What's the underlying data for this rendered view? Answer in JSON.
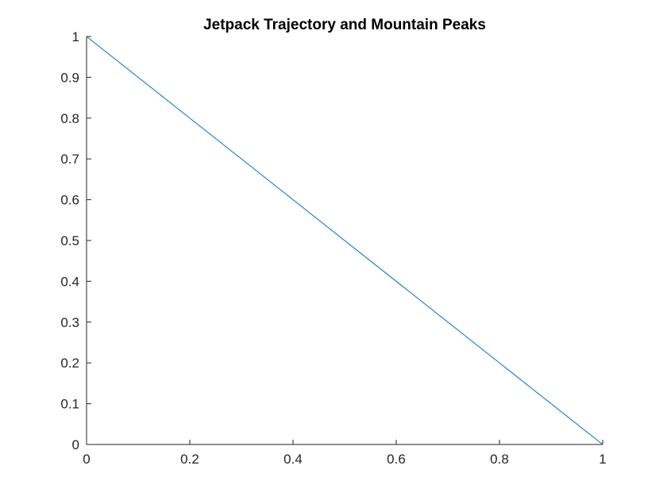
{
  "chart_data": {
    "type": "line",
    "title": "Jetpack Trajectory and Mountain Peaks",
    "xlabel": "",
    "ylabel": "",
    "xlim": [
      0,
      1
    ],
    "ylim": [
      0,
      1
    ],
    "x_ticks": [
      0,
      0.2,
      0.4,
      0.6,
      0.8,
      1
    ],
    "x_tick_labels": [
      "0",
      "0.2",
      "0.4",
      "0.6",
      "0.8",
      "1"
    ],
    "y_ticks": [
      0,
      0.1,
      0.2,
      0.3,
      0.4,
      0.5,
      0.6,
      0.7,
      0.8,
      0.9,
      1
    ],
    "y_tick_labels": [
      "0",
      "0.1",
      "0.2",
      "0.3",
      "0.4",
      "0.5",
      "0.6",
      "0.7",
      "0.8",
      "0.9",
      "1"
    ],
    "grid": false,
    "legend": "none",
    "series": [
      {
        "color": "#0072bd",
        "x": [
          0,
          1
        ],
        "y": [
          1,
          0
        ]
      }
    ],
    "colors": {
      "axis": "#262626",
      "background": "#ffffff"
    }
  }
}
